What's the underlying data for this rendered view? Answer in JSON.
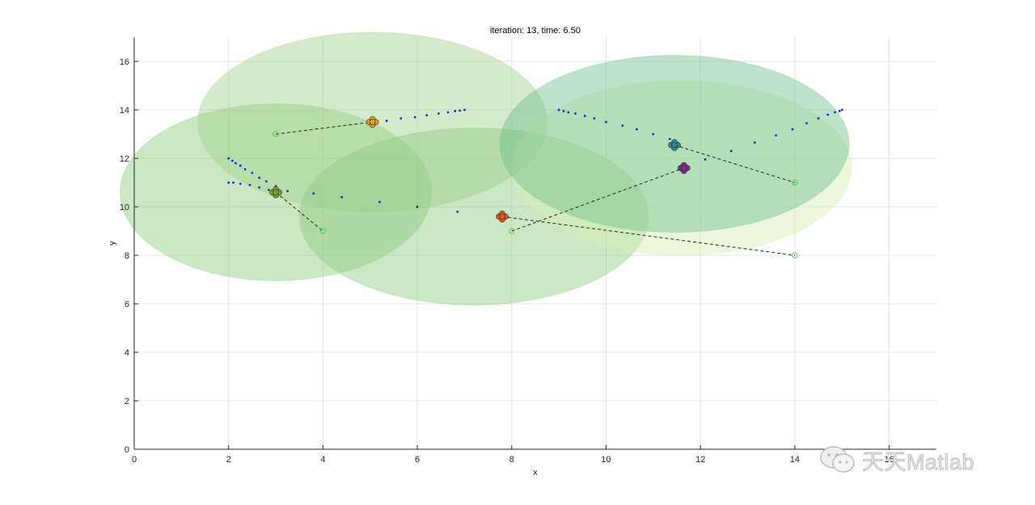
{
  "chart_data": {
    "type": "scatter",
    "title": "iteration: 13, time: 6.50",
    "xlabel": "x",
    "ylabel": "y",
    "xlim": [
      0,
      17
    ],
    "ylim": [
      0,
      17
    ],
    "xticks": [
      0,
      2,
      4,
      6,
      8,
      10,
      12,
      14,
      16
    ],
    "yticks": [
      0,
      2,
      4,
      6,
      8,
      10,
      12,
      14,
      16
    ],
    "grid": true,
    "coverage_ellipses": [
      {
        "name": "agent-1-coverage",
        "cx": 3.0,
        "cy": 10.6,
        "rx": 3.3,
        "ry": 3.65,
        "color": "#8cc97a"
      },
      {
        "name": "agent-2-coverage",
        "cx": 5.05,
        "cy": 13.5,
        "rx": 3.7,
        "ry": 3.7,
        "color": "#9fd189"
      },
      {
        "name": "agent-3-coverage",
        "cx": 7.2,
        "cy": 9.6,
        "rx": 3.7,
        "ry": 3.65,
        "color": "#8fca80"
      },
      {
        "name": "agent-4-coverage",
        "cx": 11.6,
        "cy": 11.6,
        "rx": 3.6,
        "ry": 3.6,
        "color": "#d8edb0"
      },
      {
        "name": "agent-5-coverage",
        "cx": 11.45,
        "cy": 12.6,
        "rx": 3.7,
        "ry": 3.65,
        "color": "#6fbf8c"
      }
    ],
    "trails": [
      {
        "name": "trail-green",
        "points": [
          [
            2.0,
            11.0
          ],
          [
            2.1,
            11.0
          ],
          [
            2.25,
            10.95
          ],
          [
            2.45,
            10.9
          ],
          [
            2.65,
            10.8
          ],
          [
            2.85,
            10.7
          ],
          [
            3.0,
            10.6
          ],
          [
            3.25,
            10.65
          ],
          [
            3.8,
            10.55
          ],
          [
            4.4,
            10.4
          ],
          [
            5.2,
            10.2
          ],
          [
            6.0,
            10.0
          ],
          [
            6.85,
            9.8
          ]
        ]
      },
      {
        "name": "trail-green-b",
        "points": [
          [
            2.0,
            12.0
          ],
          [
            2.08,
            11.9
          ],
          [
            2.15,
            11.8
          ],
          [
            2.25,
            11.7
          ],
          [
            2.35,
            11.55
          ],
          [
            2.5,
            11.4
          ],
          [
            2.65,
            11.2
          ],
          [
            2.8,
            11.05
          ],
          [
            3.0,
            10.85
          ]
        ]
      },
      {
        "name": "trail-orange",
        "points": [
          [
            5.1,
            13.5
          ],
          [
            5.35,
            13.55
          ],
          [
            5.65,
            13.65
          ],
          [
            5.95,
            13.7
          ],
          [
            6.2,
            13.78
          ],
          [
            6.45,
            13.85
          ],
          [
            6.65,
            13.9
          ],
          [
            6.8,
            13.95
          ],
          [
            6.9,
            13.97
          ],
          [
            7.0,
            14.0
          ]
        ]
      },
      {
        "name": "trail-teal",
        "points": [
          [
            9.0,
            14.0
          ],
          [
            9.1,
            13.95
          ],
          [
            9.2,
            13.9
          ],
          [
            9.35,
            13.85
          ],
          [
            9.55,
            13.75
          ],
          [
            9.75,
            13.65
          ],
          [
            10.0,
            13.5
          ],
          [
            10.35,
            13.35
          ],
          [
            10.65,
            13.2
          ],
          [
            11.0,
            13.0
          ],
          [
            11.35,
            12.8
          ]
        ]
      },
      {
        "name": "trail-purple",
        "points": [
          [
            12.1,
            11.95
          ],
          [
            12.65,
            12.3
          ],
          [
            13.15,
            12.65
          ],
          [
            13.6,
            12.95
          ],
          [
            13.95,
            13.2
          ],
          [
            14.25,
            13.45
          ],
          [
            14.5,
            13.65
          ],
          [
            14.7,
            13.8
          ],
          [
            14.85,
            13.9
          ],
          [
            14.95,
            13.95
          ],
          [
            15.0,
            14.0
          ]
        ]
      }
    ],
    "agents": [
      {
        "name": "agent-green",
        "x": 3.0,
        "y": 10.6,
        "color": "#6fa52f"
      },
      {
        "name": "agent-orange",
        "x": 5.05,
        "y": 13.5,
        "color": "#e0a020"
      },
      {
        "name": "agent-red",
        "x": 7.8,
        "y": 9.6,
        "color": "#d95a1a"
      },
      {
        "name": "agent-teal",
        "x": 11.45,
        "y": 12.55,
        "color": "#2a8a96"
      },
      {
        "name": "agent-purple",
        "x": 11.65,
        "y": 11.6,
        "color": "#7e2f8e"
      }
    ],
    "targets": [
      {
        "name": "target-1",
        "x": 3.0,
        "y": 13.0
      },
      {
        "name": "target-2",
        "x": 4.0,
        "y": 9.0
      },
      {
        "name": "target-3",
        "x": 8.0,
        "y": 9.0
      },
      {
        "name": "target-4",
        "x": 14.0,
        "y": 11.0
      },
      {
        "name": "target-5",
        "x": 14.0,
        "y": 8.0
      }
    ],
    "links": [
      {
        "name": "link-target-1-agent-orange",
        "from": [
          3.0,
          13.0
        ],
        "to": [
          5.05,
          13.5
        ]
      },
      {
        "name": "link-agent-green-target-2",
        "from": [
          3.0,
          10.6
        ],
        "to": [
          4.0,
          9.0
        ]
      },
      {
        "name": "link-target-3-agent-purple",
        "from": [
          8.0,
          9.0
        ],
        "to": [
          11.65,
          11.6
        ]
      },
      {
        "name": "link-agent-teal-target-4",
        "from": [
          11.45,
          12.55
        ],
        "to": [
          14.0,
          11.0
        ]
      },
      {
        "name": "link-agent-red-target-5",
        "from": [
          7.8,
          9.6
        ],
        "to": [
          14.0,
          8.0
        ]
      }
    ]
  },
  "watermark": {
    "text": "天天Matlab",
    "icon": "wechat-icon"
  }
}
